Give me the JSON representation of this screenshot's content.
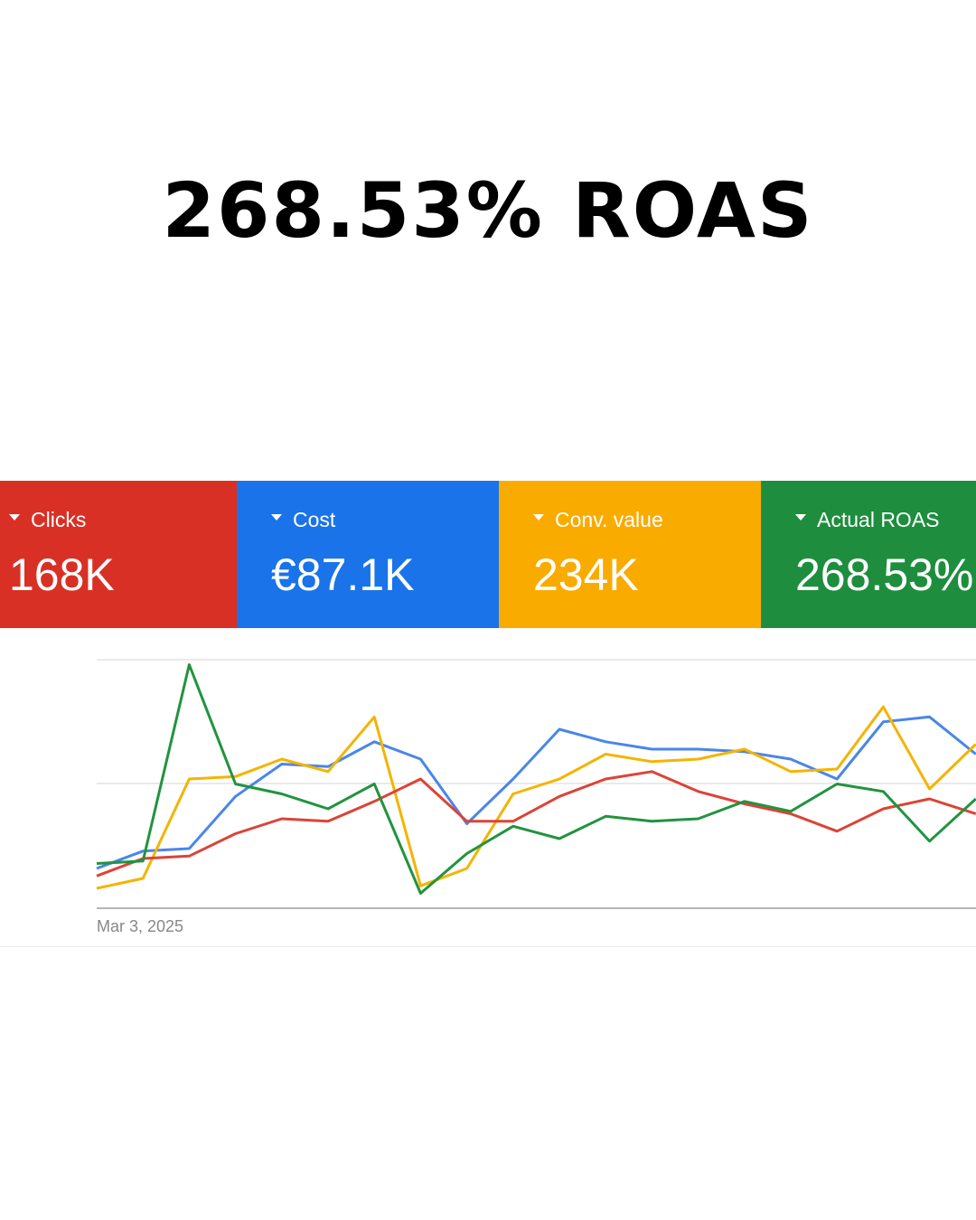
{
  "headline": "268.53% ROAS",
  "metrics": [
    {
      "label": "Clicks",
      "value": "168K",
      "color": "#D93025"
    },
    {
      "label": "Cost",
      "value": "€87.1K",
      "color": "#1A73E8"
    },
    {
      "label": "Conv. value",
      "value": "234K",
      "color": "#F9AB00"
    },
    {
      "label": "Actual ROAS",
      "value": "268.53%",
      "color": "#1E8E3E"
    }
  ],
  "chart": {
    "x_start_label": "Mar 3, 2025",
    "series": [
      {
        "metric": "Cost",
        "color": "#4A86E8",
        "values": [
          0.16,
          0.23,
          0.24,
          0.45,
          0.58,
          0.57,
          0.67,
          0.6,
          0.34,
          0.52,
          0.72,
          0.67,
          0.64,
          0.64,
          0.63,
          0.6,
          0.52,
          0.75,
          0.77,
          0.62
        ]
      },
      {
        "metric": "Conv. value",
        "color": "#F4B400",
        "values": [
          0.08,
          0.12,
          0.52,
          0.53,
          0.6,
          0.55,
          0.77,
          0.09,
          0.16,
          0.46,
          0.52,
          0.62,
          0.59,
          0.6,
          0.64,
          0.55,
          0.56,
          0.81,
          0.48,
          0.66
        ]
      },
      {
        "metric": "Clicks",
        "color": "#DB4437",
        "values": [
          0.13,
          0.2,
          0.21,
          0.3,
          0.36,
          0.35,
          0.43,
          0.52,
          0.35,
          0.35,
          0.45,
          0.52,
          0.55,
          0.47,
          0.42,
          0.38,
          0.31,
          0.4,
          0.44,
          0.38
        ]
      },
      {
        "metric": "Actual ROAS",
        "color": "#22933F",
        "values": [
          0.18,
          0.19,
          0.98,
          0.5,
          0.46,
          0.4,
          0.5,
          0.06,
          0.22,
          0.33,
          0.28,
          0.37,
          0.35,
          0.36,
          0.43,
          0.39,
          0.5,
          0.47,
          0.27,
          0.44
        ]
      }
    ]
  }
}
